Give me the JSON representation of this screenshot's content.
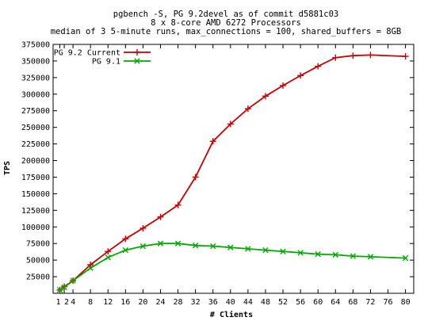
{
  "chart_data": {
    "type": "line",
    "title": "pgbench -S, PG 9.2devel as of commit d5881c03",
    "subtitle": [
      "8 x 8-core AMD 6272 Processors",
      "median of 3 5-minute runs, max_connections = 100, shared_buffers = 8GB"
    ],
    "xlabel": "# Clients",
    "ylabel": "TPS",
    "xlim": [
      0,
      80
    ],
    "ylim": [
      0,
      375000
    ],
    "xticks": [
      1,
      2,
      4,
      8,
      12,
      16,
      20,
      24,
      28,
      32,
      36,
      40,
      44,
      48,
      52,
      56,
      60,
      64,
      68,
      72,
      76,
      80
    ],
    "xtick_labels": [
      "1",
      "2",
      "4",
      "8",
      "12",
      "16",
      "20",
      "24",
      "28",
      "32",
      "36",
      "40",
      "44",
      "48",
      "52",
      "56",
      "60",
      "64",
      "68",
      "72",
      "76",
      "80"
    ],
    "yticks": [
      25000,
      50000,
      75000,
      100000,
      125000,
      150000,
      175000,
      200000,
      225000,
      250000,
      275000,
      300000,
      325000,
      350000,
      375000
    ],
    "grid": false,
    "legend_position": "top-left",
    "series": [
      {
        "name": "PG 9.2 Current",
        "color": "#cc0000",
        "marker": "plus",
        "x": [
          1,
          2,
          4,
          8,
          12,
          16,
          20,
          24,
          28,
          32,
          36,
          40,
          44,
          48,
          52,
          56,
          60,
          64,
          68,
          72,
          80
        ],
        "values": [
          5000,
          10000,
          19000,
          43000,
          63000,
          82000,
          98000,
          115000,
          133000,
          175000,
          229000,
          255000,
          278000,
          297000,
          313000,
          328000,
          342000,
          355000,
          358000,
          359000,
          357000
        ]
      },
      {
        "name": "PG 9.1",
        "color": "#00aa00",
        "marker": "x",
        "x": [
          1,
          2,
          4,
          8,
          12,
          16,
          20,
          24,
          28,
          32,
          36,
          40,
          44,
          48,
          52,
          56,
          60,
          64,
          68,
          72,
          80
        ],
        "values": [
          5000,
          9000,
          19000,
          38000,
          54000,
          65000,
          71000,
          75000,
          75000,
          72000,
          71000,
          69000,
          67000,
          65000,
          63000,
          61000,
          59000,
          58000,
          56000,
          55000,
          53000
        ]
      }
    ]
  }
}
